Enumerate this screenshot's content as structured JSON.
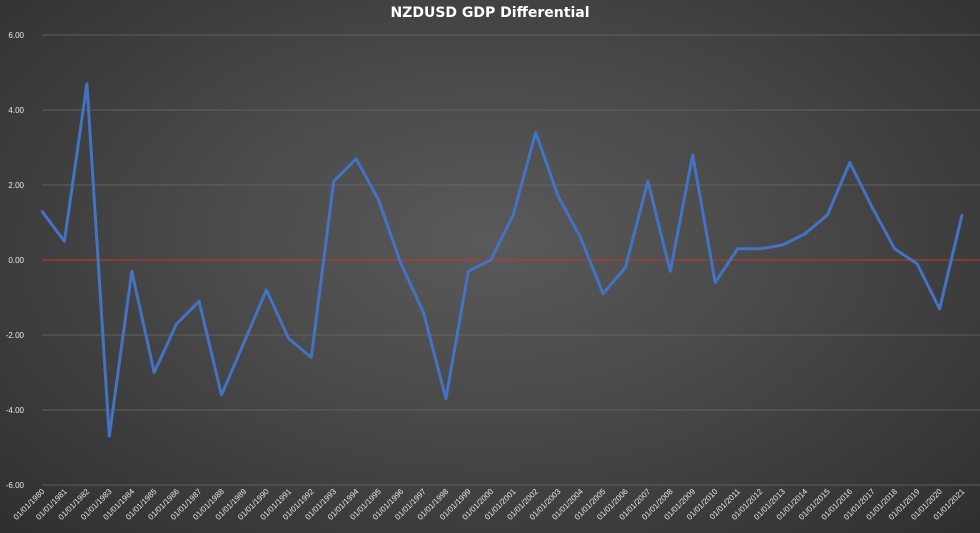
{
  "chart_data": {
    "type": "line",
    "title": "NZDUSD GDP Differential",
    "xlabel": "",
    "ylabel": "",
    "ylim": [
      -6,
      6
    ],
    "yticks": [
      "6.00",
      "4.00",
      "2.00",
      "0.00",
      "-2.00",
      "-4.00",
      "-6.00"
    ],
    "grid": true,
    "legend": "none",
    "categories": [
      "01/01/1980",
      "01/01/1981",
      "01/01/1982",
      "01/01/1983",
      "01/01/1984",
      "01/01/1985",
      "01/01/1986",
      "01/01/1987",
      "01/01/1988",
      "01/01/1989",
      "01/01/1990",
      "01/01/1991",
      "01/01/1992",
      "01/01/1993",
      "01/01/1994",
      "01/01/1995",
      "01/01/1996",
      "01/01/1997",
      "01/01/1998",
      "01/01/1999",
      "01/01/2000",
      "01/01/2001",
      "01/01/2002",
      "01/01/2003",
      "01/01/2004",
      "01/01/2005",
      "01/01/2006",
      "01/01/2007",
      "01/01/2008",
      "01/01/2009",
      "01/01/2010",
      "01/01/2011",
      "01/01/2012",
      "01/01/2013",
      "01/01/2014",
      "01/01/2015",
      "01/01/2016",
      "01/01/2017",
      "01/01/2018",
      "01/01/2019",
      "01/01/2020",
      "01/01/2021"
    ],
    "series": [
      {
        "values": [
          1.3,
          0.5,
          4.7,
          -4.7,
          -0.3,
          -3.0,
          -1.7,
          -1.1,
          -3.6,
          -2.2,
          -0.8,
          -2.1,
          -2.6,
          2.1,
          2.7,
          1.6,
          -0.1,
          -1.4,
          -3.7,
          -0.3,
          0.0,
          1.2,
          3.4,
          1.7,
          0.6,
          -0.9,
          -0.2,
          2.1,
          -0.3,
          2.8,
          -0.6,
          0.3,
          0.3,
          0.4,
          0.7,
          1.2,
          2.6,
          1.4,
          0.3,
          -0.1,
          -1.3,
          1.2
        ]
      }
    ],
    "colors": {
      "line": "#4472c4",
      "zero_line": "#c0392b",
      "grid": "#6b6b6b",
      "text": "#e8e8e8"
    }
  }
}
